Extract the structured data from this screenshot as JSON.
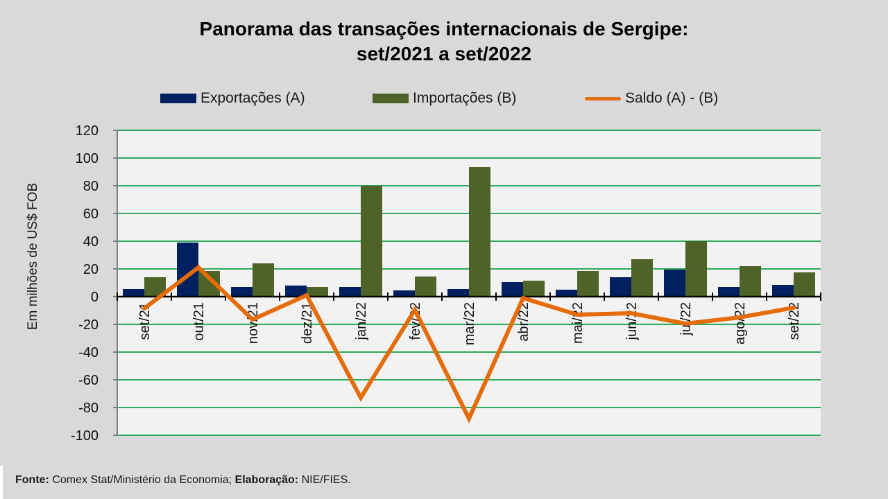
{
  "colors": {
    "background": "#d9d9d9",
    "plot_background": "#f2f2f2",
    "gridline": "#2eaa5c",
    "exports": "#002060",
    "imports": "#4f6228",
    "balance": "#e46c0a"
  },
  "chart_data": {
    "type": "bar",
    "title": "Panorama  das transações internacionais de Sergipe:",
    "subtitle": "set/2021 a set/2022",
    "xlabel": "",
    "ylabel": "Em milhões de US$ FOB",
    "ylim": [
      -100,
      120
    ],
    "ytick_step": 20,
    "yticks": [
      "120",
      "100",
      "80",
      "60",
      "40",
      "20",
      "0",
      "-20",
      "-40",
      "-60",
      "-80",
      "-100"
    ],
    "grid": true,
    "legend_position": "top",
    "categories": [
      "set/21",
      "out/21",
      "nov/21",
      "dez/21",
      "jan/22",
      "fev/22",
      "mar/22",
      "abr/22",
      "mai/22",
      "jun/22",
      "jul/22",
      "ago/22",
      "set/22"
    ],
    "series": [
      {
        "name": "Exportações (A)",
        "type": "bar",
        "color": "#002060",
        "values": [
          5.5,
          39,
          7,
          8,
          7,
          4.5,
          5.5,
          10.5,
          5,
          14,
          19.5,
          7,
          8.5
        ]
      },
      {
        "name": "Importações (B)",
        "type": "bar",
        "color": "#4f6228",
        "values": [
          14,
          18.5,
          24,
          7,
          80,
          14.5,
          93.5,
          11.5,
          18.5,
          27,
          40,
          22,
          17.5
        ]
      },
      {
        "name": "Saldo (A) - (B)",
        "type": "line",
        "color": "#e46c0a",
        "values": [
          -8.5,
          21,
          -16.5,
          1,
          -73,
          -9.5,
          -88,
          -1,
          -13,
          -12,
          -19.5,
          -15,
          -8
        ]
      }
    ]
  },
  "footer": {
    "source_label": "Fonte:",
    "source_text": " Comex Stat/Ministério da Economia; ",
    "credit_label": "Elaboração:",
    "credit_text": " NIE/FIES."
  }
}
